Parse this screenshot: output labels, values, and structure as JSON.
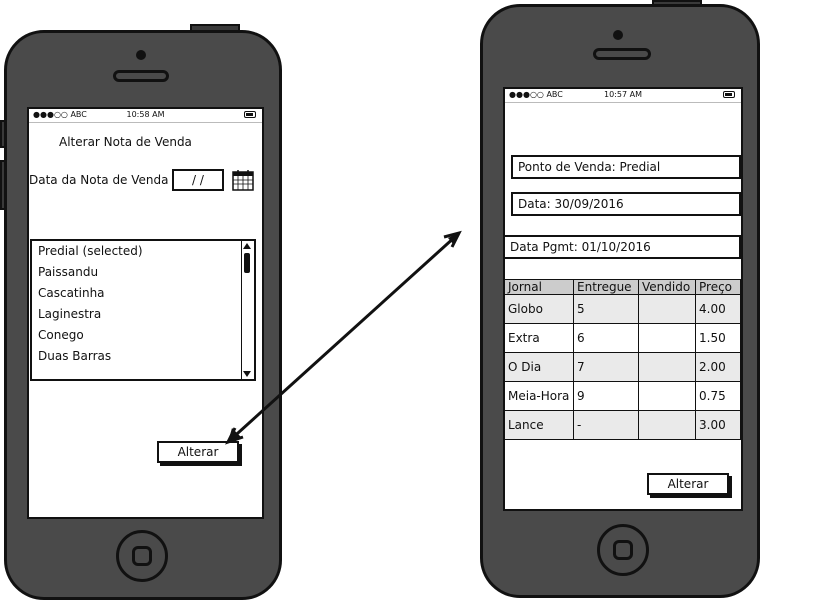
{
  "left_phone": {
    "status": {
      "carrier": "●●●○○ ABC",
      "time": "10:58 AM"
    },
    "title": "Alterar Nota de Venda",
    "date_label": "Data da Nota de Venda",
    "date_value": "/ /",
    "list_items": [
      "Predial (selected)",
      "Paissandu",
      "Cascatinha",
      "Laginestra",
      "Conego",
      "Duas Barras"
    ],
    "alter_button": "Alterar"
  },
  "right_phone": {
    "status": {
      "carrier": "●●●○○ ABC",
      "time": "10:57 AM"
    },
    "ponto_venda": "Ponto de Venda: Predial",
    "data": "Data: 30/09/2016",
    "data_pgmt": "Data Pgmt: 01/10/2016",
    "table": {
      "headers": [
        "Jornal",
        "Entregue",
        "Vendido",
        "Preço"
      ],
      "rows": [
        [
          "Globo",
          "5",
          "",
          "4.00"
        ],
        [
          "Extra",
          "6",
          "",
          "1.50"
        ],
        [
          "O Dia",
          "7",
          "",
          "2.00"
        ],
        [
          "Meia-Hora",
          "9",
          "",
          "0.75"
        ],
        [
          "Lance",
          "-",
          "",
          "3.00"
        ]
      ]
    },
    "alter_button": "Alterar"
  }
}
